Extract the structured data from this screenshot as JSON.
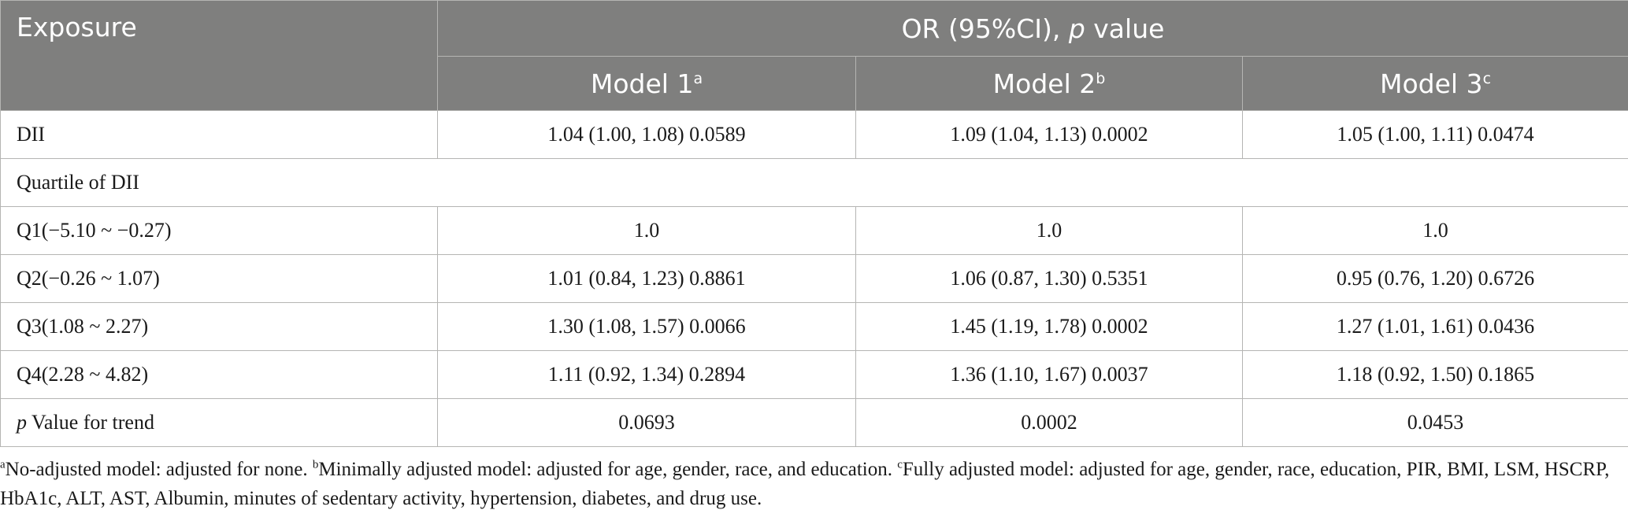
{
  "header": {
    "exposure": "Exposure",
    "group_prefix": "OR (95%CI), ",
    "group_italic": "p",
    "group_suffix": " value",
    "models": [
      {
        "label": "Model 1",
        "sup": "a"
      },
      {
        "label": "Model 2",
        "sup": "b"
      },
      {
        "label": "Model 3",
        "sup": "c"
      }
    ]
  },
  "rows": {
    "dii": {
      "label": "DII",
      "values": [
        "1.04 (1.00, 1.08) 0.0589",
        "1.09 (1.04, 1.13) 0.0002",
        "1.05 (1.00, 1.11) 0.0474"
      ]
    },
    "quartile_header": {
      "label": "Quartile of DII"
    },
    "q1": {
      "label": "Q1(−5.10 ~ −0.27)",
      "values": [
        "1.0",
        "1.0",
        "1.0"
      ]
    },
    "q2": {
      "label": "Q2(−0.26 ~ 1.07)",
      "values": [
        "1.01 (0.84, 1.23) 0.8861",
        "1.06 (0.87, 1.30) 0.5351",
        "0.95 (0.76, 1.20) 0.6726"
      ]
    },
    "q3": {
      "label": "Q3(1.08 ~ 2.27)",
      "values": [
        "1.30 (1.08, 1.57) 0.0066",
        "1.45 (1.19, 1.78) 0.0002",
        "1.27 (1.01, 1.61) 0.0436"
      ]
    },
    "q4": {
      "label": "Q4(2.28 ~ 4.82)",
      "values": [
        "1.11 (0.92, 1.34) 0.2894",
        "1.36 (1.10, 1.67) 0.0037",
        "1.18 (0.92, 1.50) 0.1865"
      ]
    },
    "trend": {
      "label_italic": "p",
      "label_rest": " Value for trend",
      "values": [
        "0.0693",
        "0.0002",
        "0.0453"
      ]
    }
  },
  "footnotes": [
    {
      "sup": "a",
      "text": "No-adjusted model: adjusted for none. "
    },
    {
      "sup": "b",
      "text": "Minimally adjusted model: adjusted for age, gender, race, and education. "
    },
    {
      "sup": "c",
      "text": "Fully adjusted model: adjusted for age, gender, race, education, PIR, BMI, LSM, HSCRP, HbA1c, ALT, AST, Albumin, minutes of sedentary activity, hypertension, diabetes, and drug use."
    }
  ]
}
